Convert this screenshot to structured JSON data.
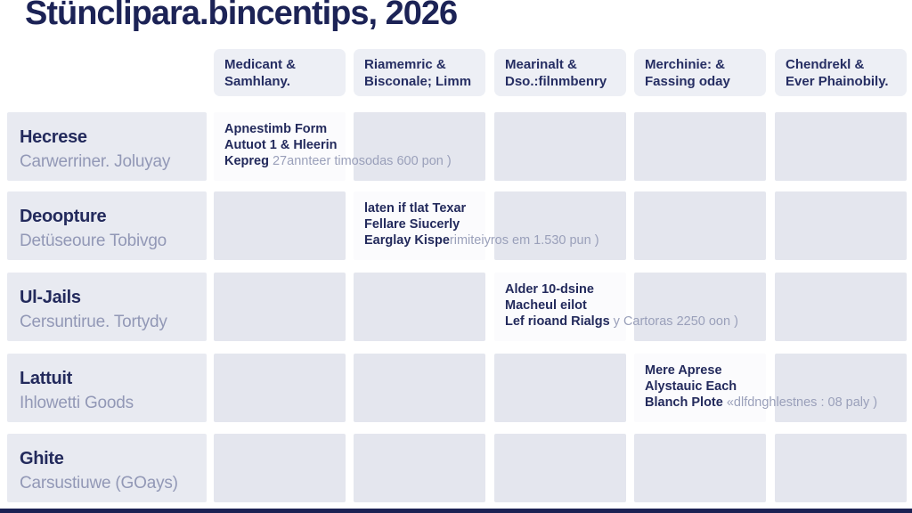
{
  "title": "Stünclipara.bincentips, 2026",
  "colors": {
    "page_bg": "#ffffff",
    "title_text": "#1c2356",
    "header_bg": "#edeff5",
    "header_text": "#262e63",
    "label_bg": "#e8eaf1",
    "label_title": "#232a5c",
    "label_sub": "#9298b6",
    "cell_bg": "#e4e6ee",
    "filled_cell_bg": "#fbfbfd",
    "cell_text": "#232a5c",
    "cell_text_light": "#9aa0ba",
    "bottom_bar": "#1b2254"
  },
  "columns": [
    {
      "line1": "Medicant &",
      "line2": "Samhlany."
    },
    {
      "line1": "Riamemric &",
      "line2": "Bisconale; Limm"
    },
    {
      "line1": "Mearinalt &",
      "line2": "Dso.:filnmbenry"
    },
    {
      "line1": "Merchinie: &",
      "line2": "Fassing oday"
    },
    {
      "line1": "Chendrekl &",
      "line2": "Ever Phainobily."
    }
  ],
  "rows": [
    {
      "title": "Hecrese",
      "subtitle": "Carwerriner. Joluyay",
      "entry": {
        "column": 0,
        "line1": "Apnestimb Form",
        "line2": "Autuot 1 & Hleerin",
        "line3_bold": "Kepreg",
        "line3_light": " 27annteer timosodas 600 pon )"
      }
    },
    {
      "title": "Deoopture",
      "subtitle": "Detüseoure Tobivgo",
      "entry": {
        "column": 1,
        "line1": "laten if tlat Texar",
        "line2": "Fellare Siucerly",
        "line3_bold": "Earglay Kispe",
        "line3_light": "rimiteiyros em 1.530 pun )"
      }
    },
    {
      "title": "Ul-Jails",
      "subtitle": "Cersuntirue. Tortydy",
      "entry": {
        "column": 2,
        "line1": "Alder 10-dsine",
        "line2": "Macheul eilot",
        "line3_bold": "Lef rioand Rialgs",
        "line3_light": " y Cartoras 2250 oon )"
      }
    },
    {
      "title": "Lattuit",
      "subtitle": "Ihlowetti Goods",
      "entry": {
        "column": 3,
        "line1": "Mere Aprese",
        "line2": "Alystauic Each",
        "line3_bold": "Blanch Plote",
        "line3_light": " «dlfdnghlestnes : 08 paly )"
      }
    },
    {
      "title": "Ghite",
      "subtitle": "Carsustiuwe (GOays)",
      "entry": null
    }
  ]
}
